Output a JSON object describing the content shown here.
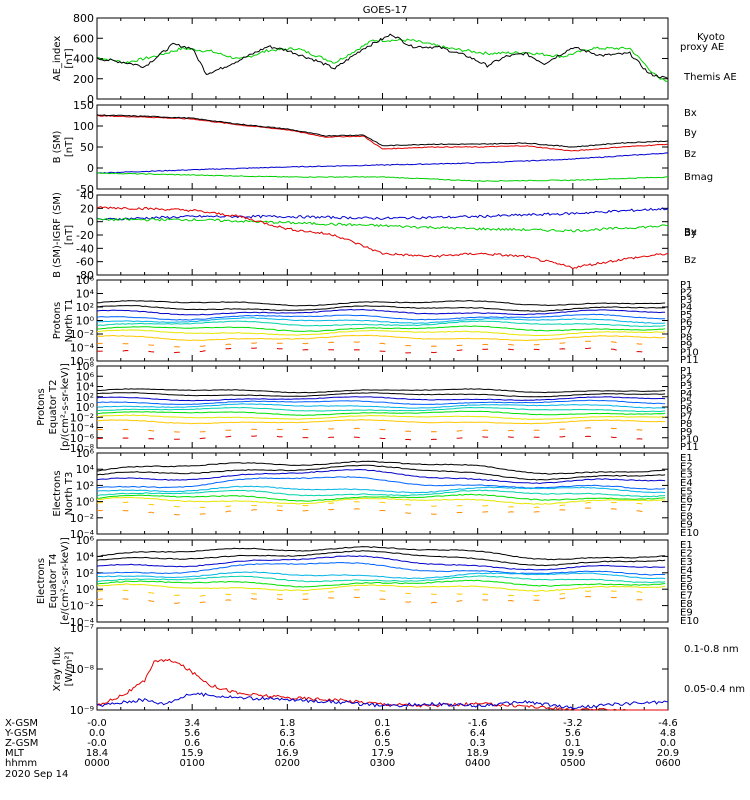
{
  "title": "GOES-17",
  "date_label": "2020 Sep 14",
  "colors": {
    "black": "#000000",
    "red": "#e00000",
    "green": "#00d000",
    "blue": "#0000d0",
    "channels": [
      "#000000",
      "#000000",
      "#0000c8",
      "#0064ff",
      "#00b4e6",
      "#00d2aa",
      "#00e000",
      "#e6e600",
      "#ffc800",
      "#ff8c00",
      "#dd0000"
    ]
  },
  "x_ticks": {
    "xgsm": [
      "-0.0",
      "3.4",
      "1.8",
      "0.1",
      "-1.6",
      "-3.2",
      "-4.6"
    ],
    "ygsm": [
      "0.0",
      "5.6",
      "6.3",
      "6.6",
      "6.4",
      "5.6",
      "4.8"
    ],
    "zgsm": [
      "-0.0",
      "0.6",
      "0.6",
      "0.5",
      "0.3",
      "0.1",
      "0.0"
    ],
    "mlt": [
      "18.4",
      "15.9",
      "16.9",
      "17.9",
      "18.9",
      "19.9",
      "20.9"
    ],
    "hhmm": [
      "0000",
      "0100",
      "0200",
      "0300",
      "0400",
      "0500",
      "0600"
    ]
  },
  "row_labels": [
    "X-GSM",
    "Y-GSM",
    "Z-GSM",
    "MLT",
    "hhmm"
  ],
  "chart_data": [
    {
      "type": "line",
      "ylabel": [
        "AE_index",
        "[nT]"
      ],
      "ylim": [
        0,
        800
      ],
      "yticks": [
        "0",
        "200",
        "400",
        "600",
        "800"
      ],
      "series": [
        {
          "name": "Kyoto proxy AE",
          "values": [
            [
              0,
              410
            ],
            [
              0.3,
              360
            ],
            [
              0.6,
              420
            ],
            [
              0.9,
              500
            ],
            [
              1.2,
              470
            ],
            [
              1.5,
              390
            ],
            [
              1.8,
              480
            ],
            [
              2.1,
              500
            ],
            [
              2.5,
              360
            ],
            [
              2.9,
              580
            ],
            [
              3.3,
              580
            ],
            [
              3.7,
              500
            ],
            [
              4.1,
              450
            ],
            [
              4.5,
              460
            ],
            [
              4.9,
              420
            ],
            [
              5.2,
              500
            ],
            [
              5.6,
              500
            ],
            [
              5.9,
              200
            ],
            [
              6,
              180
            ]
          ]
        },
        {
          "name": "Themis AE",
          "values": [
            [
              0,
              400
            ],
            [
              0.3,
              360
            ],
            [
              0.5,
              320
            ],
            [
              0.8,
              540
            ],
            [
              1.0,
              500
            ],
            [
              1.15,
              250
            ],
            [
              1.3,
              300
            ],
            [
              1.6,
              430
            ],
            [
              1.8,
              520
            ],
            [
              2.0,
              480
            ],
            [
              2.3,
              380
            ],
            [
              2.5,
              300
            ],
            [
              2.8,
              500
            ],
            [
              3.1,
              640
            ],
            [
              3.3,
              520
            ],
            [
              3.6,
              510
            ],
            [
              3.9,
              420
            ],
            [
              4.1,
              330
            ],
            [
              4.3,
              420
            ],
            [
              4.5,
              450
            ],
            [
              4.7,
              350
            ],
            [
              5.0,
              510
            ],
            [
              5.3,
              430
            ],
            [
              5.6,
              450
            ],
            [
              5.8,
              250
            ],
            [
              6,
              200
            ]
          ]
        }
      ]
    },
    {
      "type": "line",
      "ylabel": [
        "B (SM)",
        "[nT]"
      ],
      "ylim": [
        -60,
        150
      ],
      "yticks": [
        "-50",
        "0",
        "50",
        "100",
        "150"
      ],
      "series": [
        {
          "name": "Bx",
          "values": [
            [
              0,
              -20
            ],
            [
              1,
              -12
            ],
            [
              2,
              -5
            ],
            [
              3,
              0
            ],
            [
              4,
              5
            ],
            [
              5,
              15
            ],
            [
              6,
              30
            ]
          ]
        },
        {
          "name": "By",
          "values": [
            [
              0,
              -20
            ],
            [
              1,
              -25
            ],
            [
              2,
              -30
            ],
            [
              3,
              -30
            ],
            [
              4,
              -40
            ],
            [
              5,
              -38
            ],
            [
              6,
              -30
            ]
          ]
        },
        {
          "name": "Bz",
          "values": [
            [
              0,
              123
            ],
            [
              0.5,
              120
            ],
            [
              1,
              115
            ],
            [
              1.5,
              100
            ],
            [
              2,
              88
            ],
            [
              2.4,
              70
            ],
            [
              2.8,
              72
            ],
            [
              3.0,
              40
            ],
            [
              3.5,
              45
            ],
            [
              4,
              45
            ],
            [
              4.5,
              48
            ],
            [
              5,
              35
            ],
            [
              5.5,
              45
            ],
            [
              6,
              52
            ]
          ]
        },
        {
          "name": "Bmag",
          "values": [
            [
              0,
              125
            ],
            [
              0.5,
              122
            ],
            [
              1,
              117
            ],
            [
              1.5,
              102
            ],
            [
              2,
              90
            ],
            [
              2.4,
              73
            ],
            [
              2.8,
              75
            ],
            [
              3.0,
              48
            ],
            [
              3.5,
              52
            ],
            [
              4,
              52
            ],
            [
              4.5,
              55
            ],
            [
              5,
              45
            ],
            [
              5.5,
              55
            ],
            [
              6,
              60
            ]
          ]
        }
      ]
    },
    {
      "type": "line",
      "ylabel": [
        "B (SM)-IGRF (SM)",
        "[nT]"
      ],
      "ylim": [
        -90,
        40
      ],
      "yticks": [
        "-80",
        "-60",
        "-40",
        "-20",
        "0",
        "20",
        "40"
      ],
      "series": [
        {
          "name": "Bx",
          "values": [
            [
              0,
              0
            ],
            [
              1,
              5
            ],
            [
              2,
              5
            ],
            [
              3,
              2
            ],
            [
              4,
              5
            ],
            [
              5,
              10
            ],
            [
              6,
              18
            ]
          ]
        },
        {
          "name": "By",
          "values": [
            [
              0,
              0
            ],
            [
              1,
              0
            ],
            [
              2,
              -5
            ],
            [
              3,
              -10
            ],
            [
              4,
              -15
            ],
            [
              5,
              -18
            ],
            [
              6,
              -10
            ]
          ]
        },
        {
          "name": "Bz",
          "values": [
            [
              0,
              20
            ],
            [
              0.5,
              18
            ],
            [
              1,
              15
            ],
            [
              1.5,
              5
            ],
            [
              2,
              -15
            ],
            [
              2.5,
              -25
            ],
            [
              3,
              -55
            ],
            [
              3.5,
              -60
            ],
            [
              4,
              -55
            ],
            [
              4.5,
              -60
            ],
            [
              5,
              -78
            ],
            [
              5.5,
              -65
            ],
            [
              6,
              -55
            ]
          ]
        }
      ]
    },
    {
      "type": "line",
      "log": true,
      "ylabel": [
        "Protons",
        "North T1"
      ],
      "ylim": [
        -6,
        6
      ],
      "yticks": [
        "10⁻⁶",
        "10⁻⁴",
        "10⁻²",
        "10⁰",
        "10²",
        "10⁴",
        "10⁶"
      ],
      "legend": [
        "P1",
        "P2",
        "P3",
        "P4",
        "P5",
        "P6",
        "P7",
        "P8",
        "P9",
        "P10",
        "P11"
      ],
      "levels": [
        2.6,
        1.8,
        1.2,
        0.5,
        0.0,
        -0.5,
        -1.2,
        -1.8,
        -2.6,
        -3.5,
        -4.4
      ]
    },
    {
      "type": "line",
      "log": true,
      "ylabel": [
        "Protons",
        "Equator T2",
        "[p/(cm²-s-sr-keV)]"
      ],
      "ylim": [
        -8,
        8
      ],
      "yticks": [
        "10⁻⁸",
        "10⁻⁶",
        "10⁻⁴",
        "10⁻²",
        "10⁰",
        "10²",
        "10⁴",
        "10⁶",
        "10⁸"
      ],
      "legend": [
        "P1",
        "P2",
        "P3",
        "P4",
        "P5",
        "P6",
        "P7",
        "P8",
        "P9",
        "P10",
        "P11"
      ],
      "levels": [
        3.2,
        2.4,
        1.6,
        0.9,
        0.2,
        -0.5,
        -1.2,
        -2.0,
        -2.9,
        -4.5,
        -6.0
      ]
    },
    {
      "type": "line",
      "log": true,
      "ylabel": [
        "Electrons",
        "North T3"
      ],
      "ylim": [
        -4,
        6
      ],
      "yticks": [
        "10⁻⁴",
        "10⁻²",
        "10⁰",
        "10²",
        "10⁴",
        "10⁶"
      ],
      "legend": [
        "E1",
        "E2",
        "E3",
        "E4",
        "E5",
        "E6",
        "E7",
        "E8",
        "E9",
        "E10"
      ],
      "levels": [
        4.3,
        3.6,
        3.0,
        2.2,
        1.5,
        1.0,
        0.5,
        0.1,
        -0.4,
        -1.2
      ]
    },
    {
      "type": "line",
      "log": true,
      "ylabel": [
        "Electrons",
        "Equator T4",
        "[e/(cm²-s-sr-keV)]"
      ],
      "ylim": [
        -4,
        6
      ],
      "yticks": [
        "10⁻⁴",
        "10⁻²",
        "10⁰",
        "10²",
        "10⁴",
        "10⁶"
      ],
      "legend": [
        "E1",
        "E2",
        "E3",
        "E4",
        "E5",
        "E6",
        "E7",
        "E8",
        "E9",
        "E10"
      ],
      "levels": [
        4.5,
        3.8,
        3.1,
        2.4,
        1.7,
        1.2,
        0.7,
        0.2,
        -0.5,
        -1.3
      ]
    },
    {
      "type": "line",
      "log": true,
      "ylabel": [
        "Xray flux",
        "[W/m²]"
      ],
      "ylim": [
        -9,
        -7
      ],
      "yticks": [
        "10⁻⁹",
        "10⁻⁸",
        "10⁻⁷"
      ],
      "series": [
        {
          "name": "0.1-0.8 nm",
          "values": [
            [
              0,
              -8.9
            ],
            [
              0.3,
              -8.6
            ],
            [
              0.5,
              -8.3
            ],
            [
              0.6,
              -7.8
            ],
            [
              0.8,
              -7.8
            ],
            [
              0.95,
              -8.0
            ],
            [
              1.2,
              -8.4
            ],
            [
              1.5,
              -8.6
            ],
            [
              2,
              -8.7
            ],
            [
              2.5,
              -8.75
            ],
            [
              3,
              -8.85
            ],
            [
              3.5,
              -8.9
            ],
            [
              4,
              -8.85
            ],
            [
              4.5,
              -8.9
            ],
            [
              5,
              -9.0
            ],
            [
              5.5,
              -9.0
            ],
            [
              6,
              -9.1
            ]
          ]
        },
        {
          "name": "0.05-0.4 nm",
          "values": [
            [
              0,
              -8.9
            ],
            [
              0.3,
              -8.8
            ],
            [
              0.5,
              -8.75
            ],
            [
              0.7,
              -8.85
            ],
            [
              1,
              -8.6
            ],
            [
              1.5,
              -8.7
            ],
            [
              2,
              -8.75
            ],
            [
              2.5,
              -8.8
            ],
            [
              3,
              -8.9
            ],
            [
              3.5,
              -8.85
            ],
            [
              4,
              -8.9
            ],
            [
              4.5,
              -8.8
            ],
            [
              5,
              -8.95
            ],
            [
              5.5,
              -8.85
            ],
            [
              6,
              -8.8
            ]
          ]
        }
      ]
    }
  ],
  "legends": {
    "ae": [
      "Kyoto",
      "proxy AE",
      "Themis AE"
    ],
    "b": [
      "Bx",
      "By",
      "Bz",
      "Bmag"
    ],
    "bigrf": [
      "Bx",
      "By",
      "Bz"
    ],
    "xray": [
      "0.1-0.8 nm",
      "0.05-0.4 nm"
    ]
  }
}
